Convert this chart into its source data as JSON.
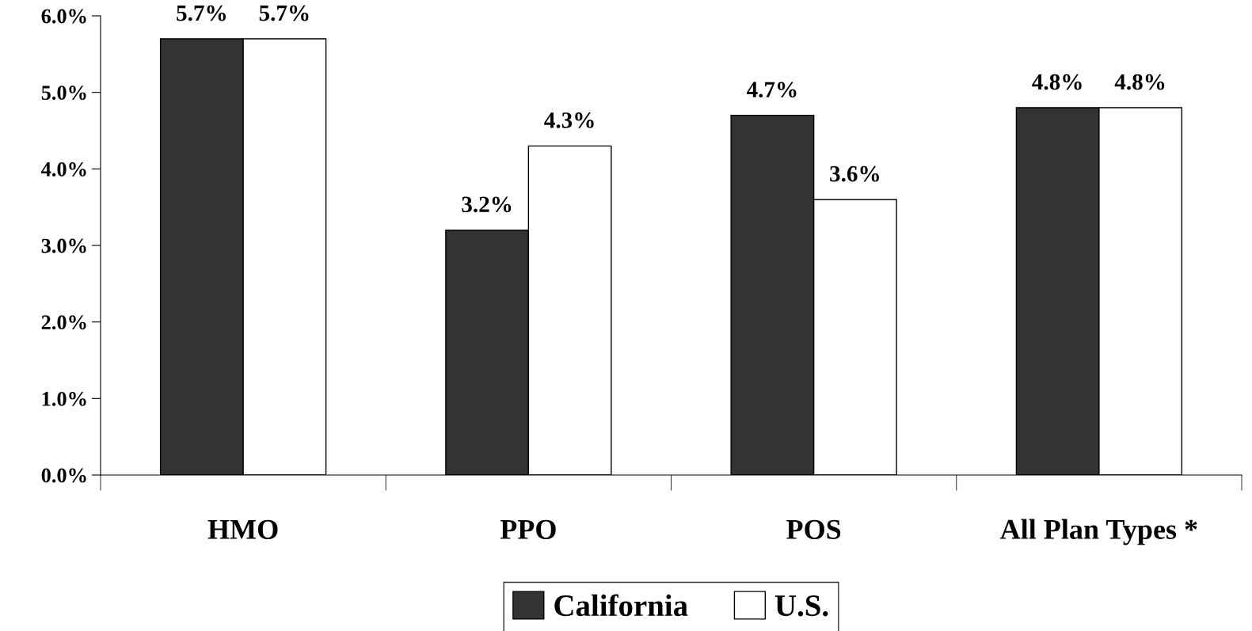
{
  "chart_data": {
    "type": "bar",
    "categories": [
      "HMO",
      "PPO",
      "POS",
      "All Plan Types *"
    ],
    "series": [
      {
        "name": "California",
        "color": "#333333",
        "values": [
          5.7,
          3.2,
          4.7,
          4.8
        ],
        "value_labels": [
          "5.7%",
          "3.2%",
          "4.7%",
          "4.8%"
        ]
      },
      {
        "name": "U.S.",
        "color": "#ffffff",
        "values": [
          5.7,
          4.3,
          3.6,
          4.8
        ],
        "value_labels": [
          "5.7%",
          "4.3%",
          "3.6%",
          "4.8%"
        ]
      }
    ],
    "ylim": [
      0,
      6
    ],
    "yticks": [
      {
        "value": 0,
        "label": "0.0%"
      },
      {
        "value": 1,
        "label": "1.0%"
      },
      {
        "value": 2,
        "label": "2.0%"
      },
      {
        "value": 3,
        "label": "3.0%"
      },
      {
        "value": 4,
        "label": "4.0%"
      },
      {
        "value": 5,
        "label": "5.0%"
      },
      {
        "value": 6,
        "label": "6.0%"
      }
    ],
    "grid": false,
    "legend": "bottom"
  }
}
